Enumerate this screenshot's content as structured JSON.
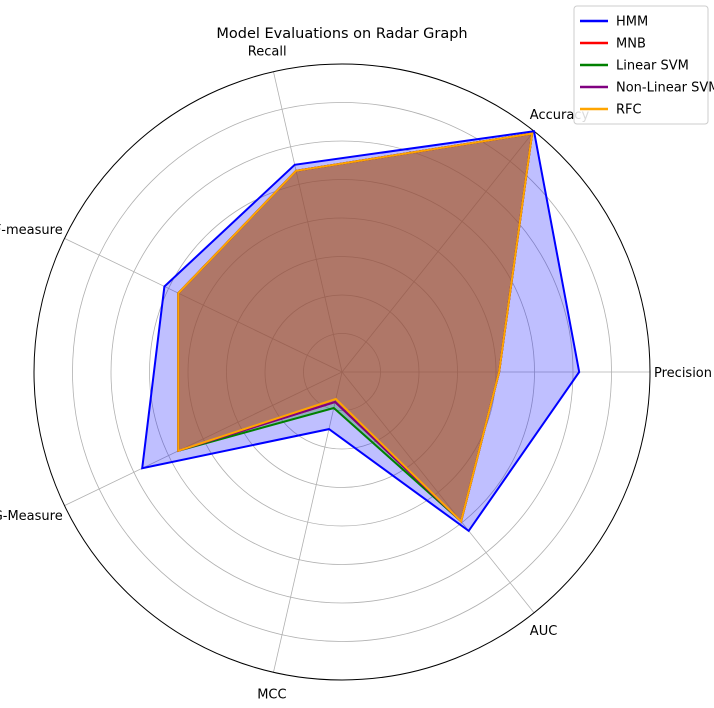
{
  "chart_data": {
    "type": "radar",
    "title": "Model Evaluations on Radar Graph",
    "axes": [
      "Precision",
      "Accuracy",
      "Recall",
      "F-measure",
      "G-Measure",
      "MCC",
      "AUC"
    ],
    "rlim": [
      0,
      1
    ],
    "grid": true,
    "legend_position": "top-right",
    "series": [
      {
        "name": "HMM",
        "color": "#0000ff",
        "fill": "#0000ff",
        "fill_alpha": 0.25,
        "values": [
          0.77,
          1.0,
          0.69,
          0.64,
          0.72,
          0.19,
          0.66
        ]
      },
      {
        "name": "MNB",
        "color": "#ff0000",
        "fill": "#ff0000",
        "fill_alpha": 0.25,
        "values": [
          0.51,
          0.99,
          0.67,
          0.59,
          0.59,
          0.1,
          0.62
        ]
      },
      {
        "name": "Linear SVM",
        "color": "#008000",
        "fill": "#008000",
        "fill_alpha": 0.25,
        "values": [
          0.51,
          0.99,
          0.67,
          0.59,
          0.59,
          0.12,
          0.62
        ]
      },
      {
        "name": "Non-Linear SVM",
        "color": "#800080",
        "fill": "#800080",
        "fill_alpha": 0.25,
        "values": [
          0.51,
          0.99,
          0.67,
          0.59,
          0.59,
          0.1,
          0.62
        ]
      },
      {
        "name": "RFC",
        "color": "#ffa500",
        "fill": "#ffa500",
        "fill_alpha": 0.25,
        "values": [
          0.51,
          0.99,
          0.67,
          0.59,
          0.59,
          0.09,
          0.62
        ]
      }
    ]
  }
}
